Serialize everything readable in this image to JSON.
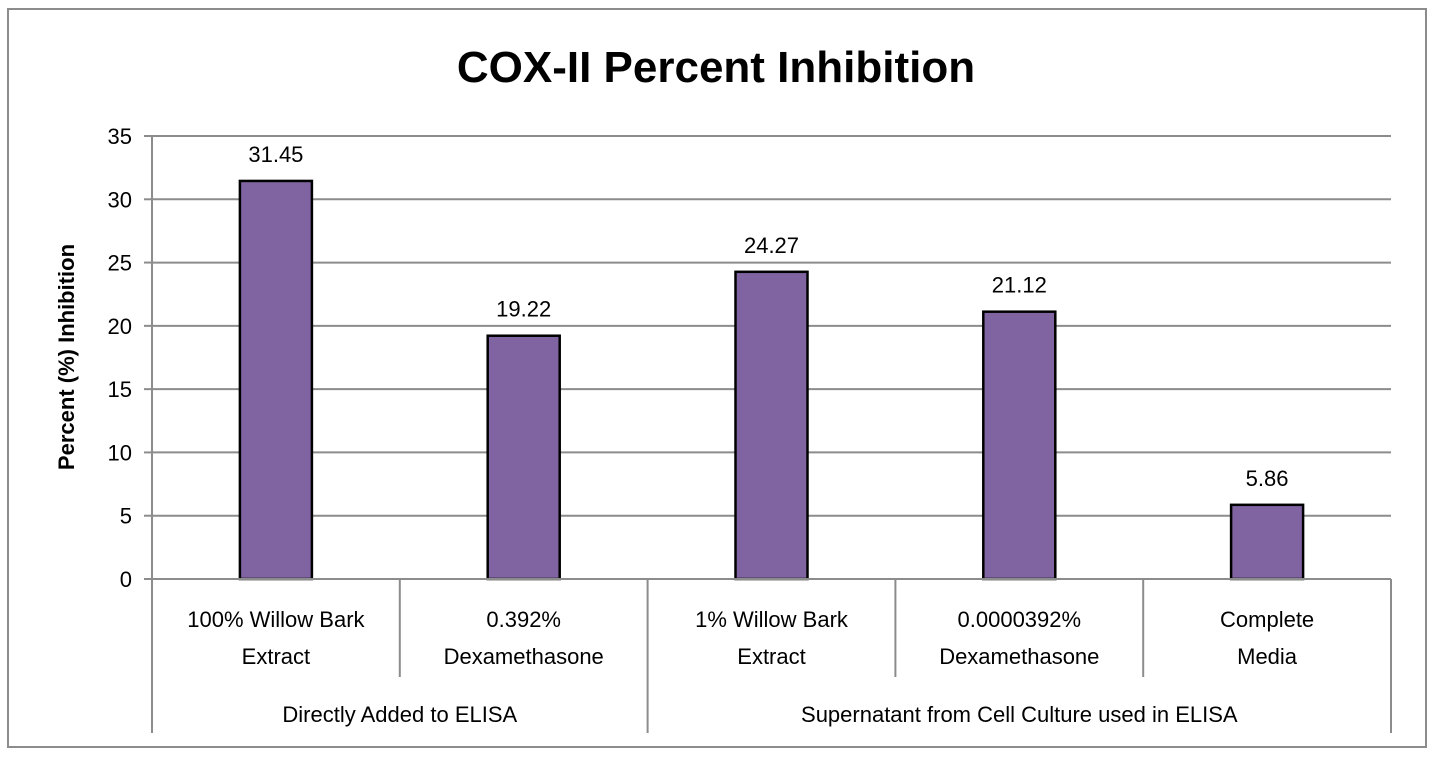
{
  "chart_data": {
    "type": "bar",
    "title": "COX-II Percent Inhibition",
    "xlabel": "",
    "ylabel": "Percent (%) Inhibition",
    "ylim": [
      0,
      35
    ],
    "yticks": [
      0,
      5,
      10,
      15,
      20,
      25,
      30,
      35
    ],
    "grid": true,
    "legend": "none",
    "categories": [
      [
        "100% Willow Bark",
        "Extract"
      ],
      [
        "0.392%",
        "Dexamethasone"
      ],
      [
        "1% Willow Bark",
        "Extract"
      ],
      [
        "0.0000392%",
        "Dexamethasone"
      ],
      [
        "Complete",
        "Media"
      ]
    ],
    "groups": [
      {
        "label": "Directly Added to ELISA",
        "span": 2
      },
      {
        "label": "Supernatant from Cell Culture used in ELISA",
        "span": 3
      }
    ],
    "values": [
      31.45,
      19.22,
      24.27,
      21.12,
      5.86
    ],
    "data_labels": [
      "31.45",
      "19.22",
      "24.27",
      "21.12",
      "5.86"
    ],
    "colors": {
      "bar": "#8064a2",
      "bar_stroke": "#000000",
      "grid": "#8c8c8c",
      "border": "#8c8c8c"
    }
  }
}
